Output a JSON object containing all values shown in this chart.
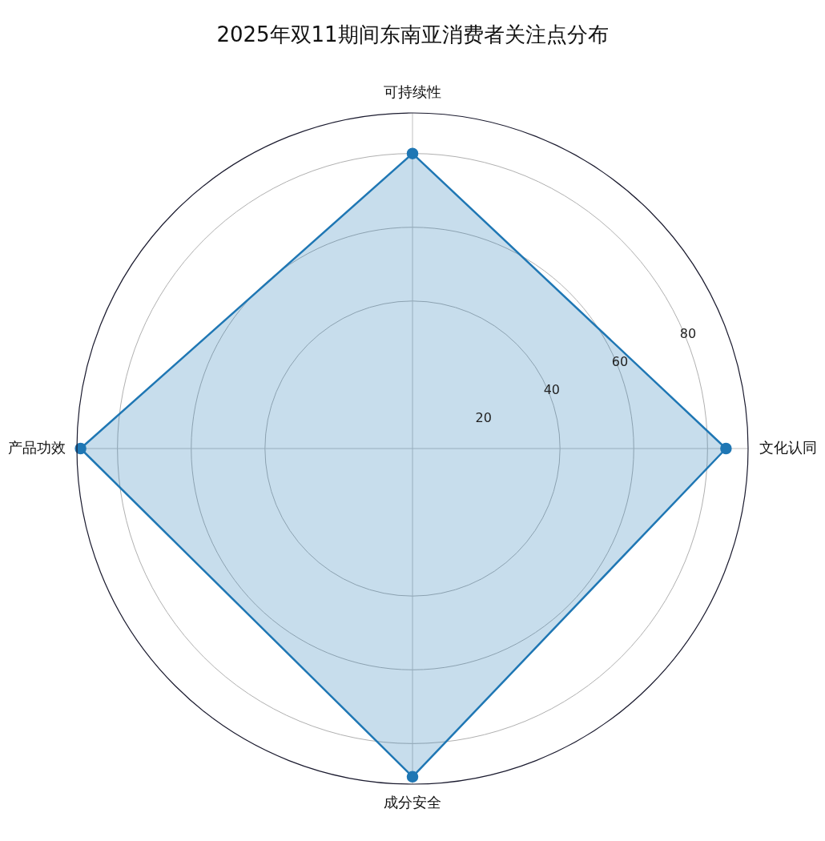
{
  "chart_data": {
    "type": "radar",
    "title": "2025年双11期间东南亚消费者关注点分布",
    "categories": [
      "可持续性",
      "文化认同",
      "成分安全",
      "产品功效"
    ],
    "series": [
      {
        "color": "#1f77b4",
        "values": [
          80,
          85,
          89,
          90
        ]
      }
    ],
    "ylim": [
      0,
      91
    ],
    "yticks": [
      20,
      40,
      60,
      80
    ],
    "grid": true,
    "marker": "circle",
    "legend": false
  }
}
